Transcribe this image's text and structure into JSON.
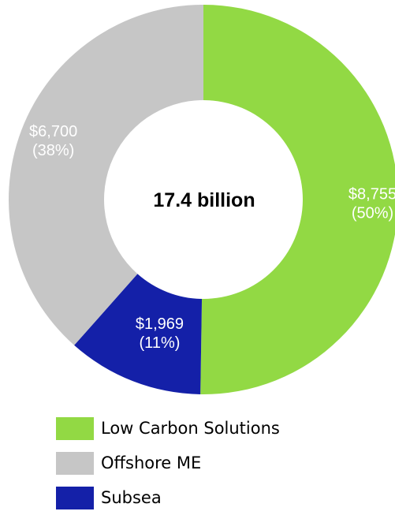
{
  "chart_data": {
    "type": "pie",
    "variant": "donut",
    "center_label": "17.4 billion",
    "slices": [
      {
        "name": "Low Carbon Solutions",
        "value": 8755,
        "value_label": "$8,755",
        "percent_label": "(50%)",
        "color": "#92d944"
      },
      {
        "name": "Subsea",
        "value": 1969,
        "value_label": "$1,969",
        "percent_label": "(11%)",
        "color": "#1420a8"
      },
      {
        "name": "Offshore ME",
        "value": 6700,
        "value_label": "$6,700",
        "percent_label": "(38%)",
        "color": "#c6c6c6"
      }
    ],
    "legend": {
      "placement": "bottom-left",
      "entries": [
        {
          "name": "Low Carbon Solutions",
          "color": "#92d944"
        },
        {
          "name": "Offshore ME",
          "color": "#c6c6c6"
        },
        {
          "name": "Subsea",
          "color": "#1420a8"
        }
      ]
    }
  }
}
